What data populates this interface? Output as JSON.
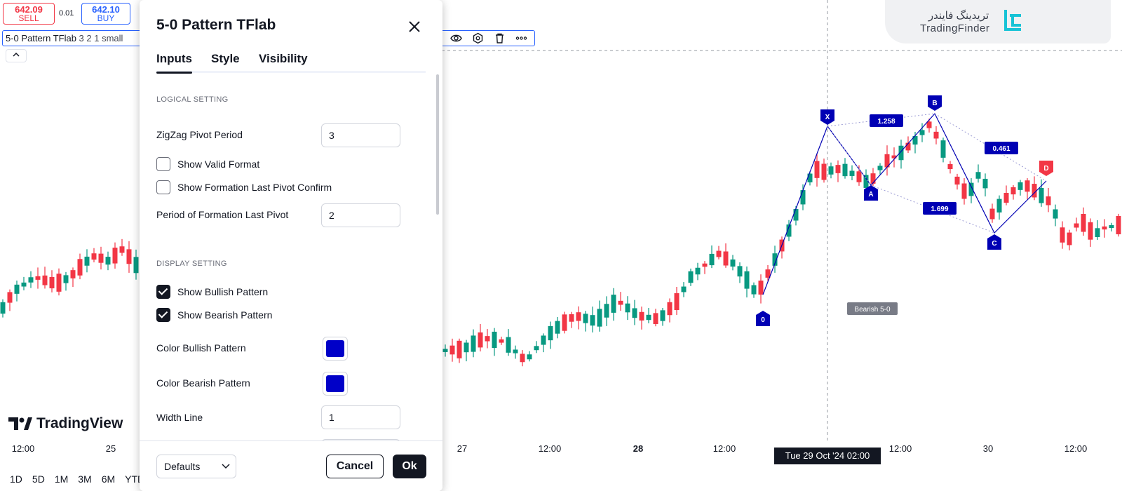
{
  "trade": {
    "sell_price": "642.09",
    "sell_label": "SELL",
    "spread": "0.01",
    "buy_price": "642.10",
    "buy_label": "BUY"
  },
  "legend": {
    "name": "5-0 Pattern TFlab",
    "args": "3 2 1 small"
  },
  "brand": {
    "name_fa": "تریدینگ فایندر",
    "name_en": "TradingFinder",
    "accent": "#18c3d6"
  },
  "tv_logo_text": "TradingView",
  "time_axis": {
    "labels": [
      "12:00",
      "25",
      "27",
      "12:00",
      "28",
      "12:00",
      "12:00",
      "30",
      "12:00"
    ],
    "bold_labels": [
      "28"
    ],
    "crosshair": "Tue 29 Oct '24   02:00"
  },
  "ranges": [
    "1D",
    "5D",
    "1M",
    "3M",
    "6M",
    "YTD"
  ],
  "dialog": {
    "title": "5-0 Pattern TFlab",
    "tabs": [
      "Inputs",
      "Style",
      "Visibility"
    ],
    "active_tab": "Inputs",
    "logical_section": "LOGICAL SETTING",
    "zigzag_label": "ZigZag Pivot Period",
    "zigzag_value": "3",
    "show_valid_label": "Show Valid Format",
    "show_valid_checked": false,
    "show_formation_label": "Show Formation Last Pivot Confirm",
    "show_formation_checked": false,
    "period_label": "Period of Formation Last Pivot",
    "period_value": "2",
    "display_section": "DISPLAY SETTING",
    "show_bullish_label": "Show Bullish Pattern",
    "show_bullish_checked": true,
    "show_bearish_label": "Show Bearish Pattern",
    "show_bearish_checked": true,
    "color_bullish_label": "Color Bullish Pattern",
    "color_bullish": "#0000c8",
    "color_bearish_label": "Color Bearish Pattern",
    "color_bearish": "#0000c8",
    "width_label": "Width Line",
    "width_value": "1",
    "defaults_label": "Defaults",
    "cancel_label": "Cancel",
    "ok_label": "Ok"
  },
  "chart_data": {
    "type": "candlestick",
    "up_color": "#089981",
    "down_color": "#f23645",
    "pattern": {
      "name": "Bearish 5-0",
      "color": "#0000b4",
      "points": [
        "0",
        "X",
        "A",
        "B",
        "C",
        "D"
      ],
      "ratios": [
        "1.258",
        "1.699",
        "0.461"
      ]
    }
  }
}
